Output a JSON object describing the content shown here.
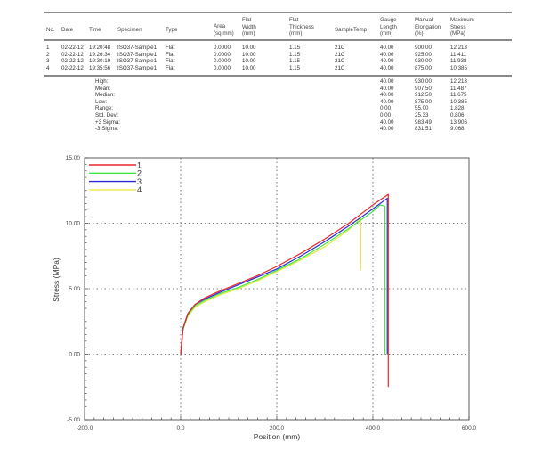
{
  "table": {
    "columns": [
      {
        "key": "no",
        "label": [
          "No."
        ],
        "x": 52
      },
      {
        "key": "date",
        "label": [
          "Date"
        ],
        "x": 69
      },
      {
        "key": "time",
        "label": [
          "Time"
        ],
        "x": 100
      },
      {
        "key": "specimen",
        "label": [
          "Specimen"
        ],
        "x": 132
      },
      {
        "key": "type",
        "label": [
          "Type"
        ],
        "x": 186
      },
      {
        "key": "area",
        "label": [
          "Area",
          "(sq mm)"
        ],
        "x": 240
      },
      {
        "key": "flat_width",
        "label": [
          "Flat",
          "Width",
          "(mm)"
        ],
        "x": 272
      },
      {
        "key": "flat_thickness",
        "label": [
          "Flat",
          "Thickness",
          "(mm)"
        ],
        "x": 325
      },
      {
        "key": "sample_temp",
        "label": [
          "SampleTemp"
        ],
        "x": 376
      },
      {
        "key": "gauge_length",
        "label": [
          "Gauge",
          "Length",
          "(mm)"
        ],
        "x": 427
      },
      {
        "key": "manual_elongation",
        "label": [
          "Manual",
          "Elongation",
          "(%)"
        ],
        "x": 466
      },
      {
        "key": "max_stress",
        "label": [
          "Maximum",
          "Stress",
          "(MPa)"
        ],
        "x": 506
      }
    ],
    "rows": [
      {
        "no": "1",
        "date": "02-22-12",
        "time": "19:20:48",
        "specimen": "ISO37-Sample1",
        "type": "Flat",
        "area": "0.0000",
        "flat_width": "10.00",
        "flat_thickness": "1.15",
        "sample_temp": "21C",
        "gauge_length": "40.00",
        "manual_elongation": "900.00",
        "max_stress": "12.213"
      },
      {
        "no": "2",
        "date": "02-22-12",
        "time": "19:26:34",
        "specimen": "ISO37-Sample1",
        "type": "Flat",
        "area": "0.0000",
        "flat_width": "10.00",
        "flat_thickness": "1.15",
        "sample_temp": "21C",
        "gauge_length": "40.00",
        "manual_elongation": "925.00",
        "max_stress": "11.411"
      },
      {
        "no": "3",
        "date": "02-22-12",
        "time": "19:30:19",
        "specimen": "ISO37-Sample1",
        "type": "Flat",
        "area": "0.0000",
        "flat_width": "10.00",
        "flat_thickness": "1.15",
        "sample_temp": "21C",
        "gauge_length": "40.00",
        "manual_elongation": "930.00",
        "max_stress": "11.938"
      },
      {
        "no": "4",
        "date": "02-22-12",
        "time": "19:35:56",
        "specimen": "ISO37-Sample1",
        "type": "Flat",
        "area": "0.0000",
        "flat_width": "10.00",
        "flat_thickness": "1.15",
        "sample_temp": "21C",
        "gauge_length": "40.00",
        "manual_elongation": "875.00",
        "max_stress": "10.385"
      }
    ],
    "stats": [
      {
        "label": "High:",
        "gauge_length": "40.00",
        "manual_elongation": "930.00",
        "max_stress": "12.213"
      },
      {
        "label": "Mean:",
        "gauge_length": "40.00",
        "manual_elongation": "907.50",
        "max_stress": "11.487"
      },
      {
        "label": "Median:",
        "gauge_length": "40.00",
        "manual_elongation": "912.50",
        "max_stress": "11.675"
      },
      {
        "label": "Low:",
        "gauge_length": "40.00",
        "manual_elongation": "875.00",
        "max_stress": "10.385"
      },
      {
        "label": "Range:",
        "gauge_length": "0.00",
        "manual_elongation": "55.00",
        "max_stress": "1.828"
      },
      {
        "label": "Std. Dev.:",
        "gauge_length": "0.00",
        "manual_elongation": "25.33",
        "max_stress": "0.806"
      },
      {
        "label": "+3 Sigma:",
        "gauge_length": "40.00",
        "manual_elongation": "983.49",
        "max_stress": "13.906"
      },
      {
        "label": "-3 Sigma:",
        "gauge_length": "40.00",
        "manual_elongation": "831.51",
        "max_stress": "9.068"
      }
    ]
  },
  "chart_data": {
    "type": "line",
    "title": "",
    "xlabel": "Position (mm)",
    "ylabel": "Stress (MPa)",
    "xlim": [
      -200,
      600
    ],
    "ylim": [
      -5,
      15
    ],
    "xticks": [
      -200,
      0,
      200,
      400,
      600
    ],
    "xtick_labels": [
      "-200.0",
      "0.0",
      "200.0",
      "400.0",
      "600.0"
    ],
    "yticks": [
      -5,
      0,
      5,
      10,
      15
    ],
    "ytick_labels": [
      "-5.00",
      "0.00",
      "5.00",
      "10.00",
      "15.00"
    ],
    "grid": "dotted at major ticks",
    "legend_position": "upper-left inside",
    "series": [
      {
        "name": "1",
        "color": "#e8262b",
        "x": [
          0,
          5,
          15,
          30,
          50,
          80,
          120,
          160,
          200,
          250,
          300,
          350,
          400,
          432,
          432,
          432
        ],
        "y": [
          0,
          2.0,
          3.1,
          3.8,
          4.3,
          4.8,
          5.4,
          6.0,
          6.7,
          7.7,
          8.8,
          10.0,
          11.4,
          12.2,
          0,
          -2.5
        ]
      },
      {
        "name": "2",
        "color": "#40e840",
        "x": [
          0,
          5,
          15,
          30,
          50,
          80,
          120,
          160,
          200,
          250,
          300,
          350,
          400,
          415,
          425,
          425
        ],
        "y": [
          0,
          1.9,
          3.0,
          3.7,
          4.1,
          4.6,
          5.1,
          5.7,
          6.4,
          7.3,
          8.4,
          9.6,
          10.9,
          11.4,
          11.3,
          0
        ]
      },
      {
        "name": "3",
        "color": "#2a2ad8",
        "x": [
          0,
          5,
          15,
          30,
          50,
          80,
          120,
          160,
          200,
          250,
          300,
          350,
          400,
          430,
          430
        ],
        "y": [
          0,
          2.0,
          3.1,
          3.8,
          4.2,
          4.7,
          5.3,
          5.9,
          6.5,
          7.5,
          8.6,
          9.8,
          11.1,
          11.9,
          0
        ]
      },
      {
        "name": "4",
        "color": "#e8e840",
        "x": [
          0,
          5,
          15,
          30,
          50,
          80,
          120,
          160,
          200,
          250,
          300,
          350,
          375,
          375
        ],
        "y": [
          0,
          1.9,
          2.9,
          3.6,
          4.0,
          4.5,
          5.0,
          5.6,
          6.3,
          7.2,
          8.2,
          9.5,
          10.4,
          6.4
        ]
      }
    ]
  }
}
